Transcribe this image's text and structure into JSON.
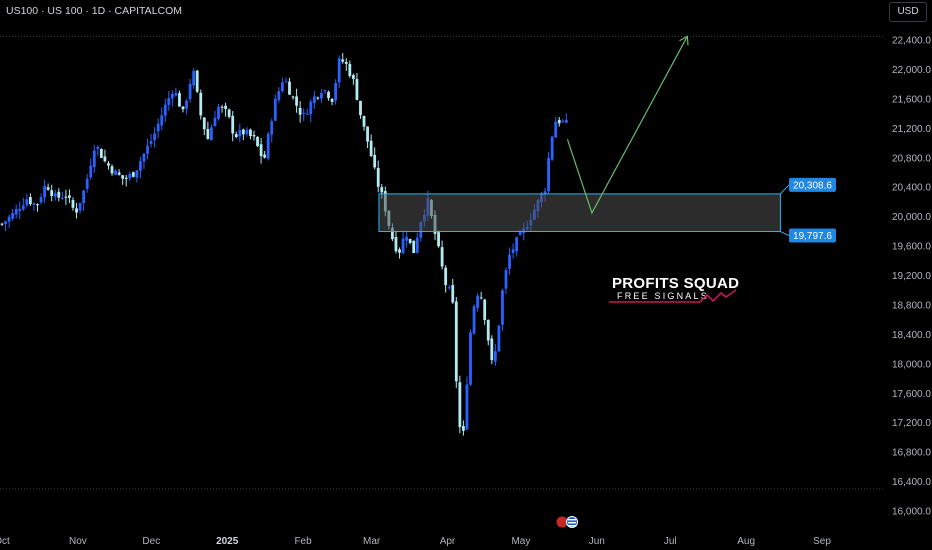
{
  "header": {
    "symbol_title": "US100 · US 100 · 1D · CAPITALCOM",
    "currency": "USD"
  },
  "brand": {
    "line1": "PROFITS SQUAD",
    "line2": "FREE SIGNALS"
  },
  "colors": {
    "bull": "#2962ff",
    "bear": "#b2ebf2",
    "zone_border": "#29b6f6",
    "projection": "#66bb6a",
    "label_bg": "#1e88e5",
    "background": "#000000"
  },
  "icons": {
    "flag": "us-flag-icon"
  },
  "chart_data": {
    "type": "candlestick",
    "title": "US100 · US 100 · 1D · CAPITALCOM",
    "ylim": [
      15800,
      22500
    ],
    "y_ticks": [
      "22,400.0",
      "22,000.0",
      "21,600.0",
      "21,200.0",
      "20,800.0",
      "20,400.0",
      "20,000.0",
      "19,600.0",
      "19,200.0",
      "18,800.0",
      "18,400.0",
      "18,000.0",
      "17,600.0",
      "17,200.0",
      "16,800.0",
      "16,400.0",
      "16,000.0"
    ],
    "x_ticks": [
      {
        "label": "Oct",
        "day": 0
      },
      {
        "label": "Nov",
        "day": 31
      },
      {
        "label": "Dec",
        "day": 61
      },
      {
        "label": "2025",
        "day": 92,
        "bold": true
      },
      {
        "label": "Feb",
        "day": 123
      },
      {
        "label": "Mar",
        "day": 151
      },
      {
        "label": "Apr",
        "day": 182
      },
      {
        "label": "May",
        "day": 212
      },
      {
        "label": "Jun",
        "day": 243
      },
      {
        "label": "Jul",
        "day": 273
      },
      {
        "label": "Aug",
        "day": 304
      },
      {
        "label": "Sep",
        "day": 335
      }
    ],
    "x_range_days": [
      -3,
      344
    ],
    "close_path": [
      [
        0,
        19900
      ],
      [
        5,
        20050
      ],
      [
        10,
        20250
      ],
      [
        14,
        20150
      ],
      [
        18,
        20450
      ],
      [
        22,
        20250
      ],
      [
        26,
        20300
      ],
      [
        30,
        20050
      ],
      [
        34,
        20400
      ],
      [
        38,
        21000
      ],
      [
        42,
        20750
      ],
      [
        46,
        20600
      ],
      [
        50,
        20500
      ],
      [
        54,
        20600
      ],
      [
        58,
        20850
      ],
      [
        62,
        21100
      ],
      [
        66,
        21450
      ],
      [
        70,
        21750
      ],
      [
        74,
        21400
      ],
      [
        78,
        22000
      ],
      [
        81,
        21400
      ],
      [
        84,
        21050
      ],
      [
        88,
        21500
      ],
      [
        92,
        21400
      ],
      [
        95,
        21100
      ],
      [
        99,
        21150
      ],
      [
        103,
        21050
      ],
      [
        107,
        20750
      ],
      [
        111,
        21500
      ],
      [
        115,
        21900
      ],
      [
        119,
        21600
      ],
      [
        123,
        21350
      ],
      [
        127,
        21600
      ],
      [
        131,
        21750
      ],
      [
        135,
        21600
      ],
      [
        138,
        22150
      ],
      [
        141,
        22050
      ],
      [
        144,
        21800
      ],
      [
        147,
        21300
      ],
      [
        150,
        20950
      ],
      [
        153,
        20500
      ],
      [
        156,
        20200
      ],
      [
        159,
        19750
      ],
      [
        162,
        19500
      ],
      [
        165,
        19800
      ],
      [
        168,
        19500
      ],
      [
        171,
        19950
      ],
      [
        174,
        20200
      ],
      [
        176,
        19900
      ],
      [
        178,
        19600
      ],
      [
        181,
        19100
      ],
      [
        184,
        18900
      ],
      [
        186,
        17500
      ],
      [
        188,
        16800
      ],
      [
        190,
        17800
      ],
      [
        192,
        18700
      ],
      [
        195,
        19050
      ],
      [
        198,
        18500
      ],
      [
        200,
        18000
      ],
      [
        202,
        18200
      ],
      [
        204,
        18900
      ],
      [
        207,
        19450
      ],
      [
        210,
        19650
      ],
      [
        213,
        19800
      ],
      [
        216,
        20000
      ],
      [
        219,
        20200
      ],
      [
        222,
        20400
      ],
      [
        224,
        21000
      ],
      [
        226,
        21300
      ],
      [
        228,
        21300
      ],
      [
        231,
        21250
      ]
    ],
    "candle_step_days": 1.45,
    "candle_seed": 7,
    "zone": {
      "top": 20308.6,
      "bottom": 19797.6,
      "day_start": 154,
      "day_end": 318
    },
    "levels": [
      {
        "label": "20,308.6",
        "value": 20308.6
      },
      {
        "label": "19,797.6",
        "value": 19797.6
      }
    ],
    "projection": [
      [
        231,
        21050
      ],
      [
        241,
        20050
      ],
      [
        280,
        22450
      ]
    ],
    "dotted_lines": [
      22450,
      16300
    ]
  }
}
